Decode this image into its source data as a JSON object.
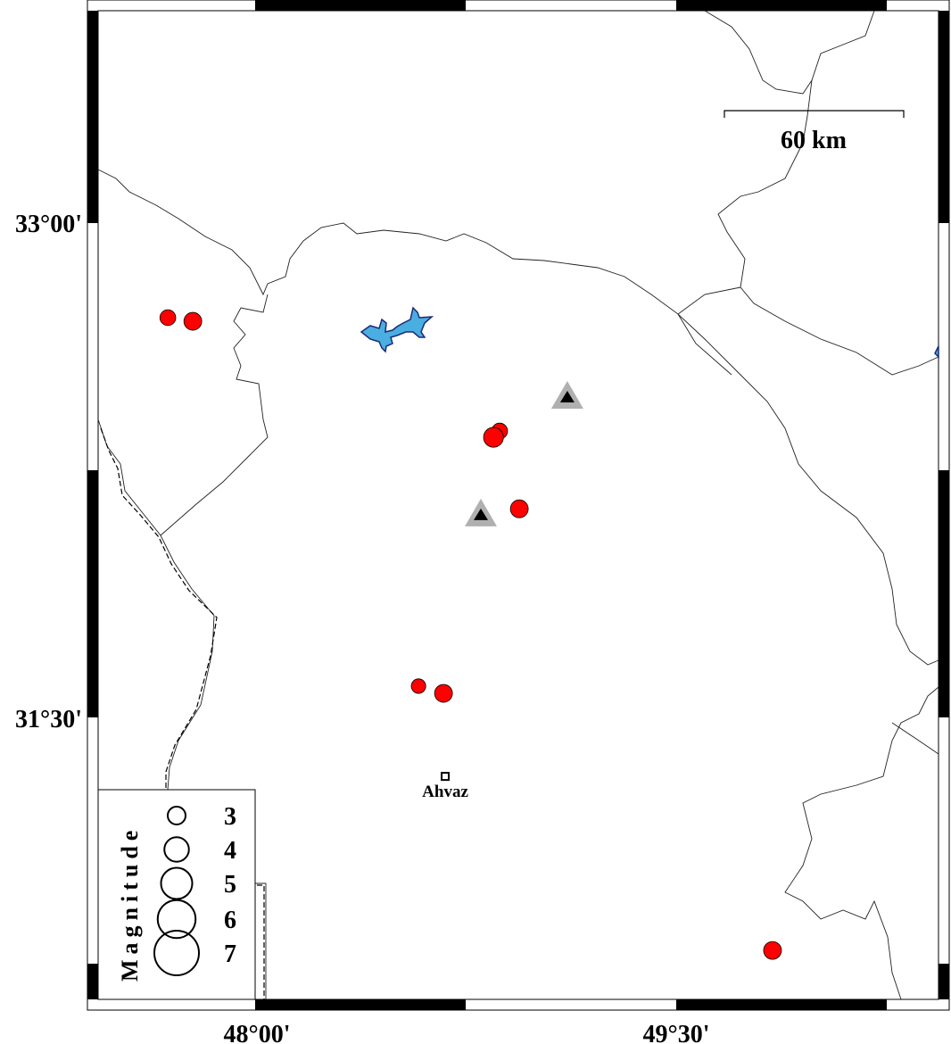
{
  "map": {
    "axes": {
      "lon_ticks": [
        "48°00'",
        "49°30'"
      ],
      "lat_ticks": [
        "33°00'",
        "31°30'"
      ],
      "lon_range": [
        47.6,
        50.6
      ],
      "lat_range": [
        30.7,
        33.8
      ]
    },
    "scale_bar": {
      "label": "60 km"
    },
    "city": {
      "name": "Ahvaz",
      "lon": 48.677,
      "lat": 31.321
    },
    "colors": {
      "earthquake": "#ff0000",
      "lake": "#4aaee0",
      "station_outer": "#b0b0b0",
      "station_inner": "#000000"
    },
    "earthquakes": [
      {
        "lon": 47.689,
        "lat": 32.713,
        "mag": 2.7
      },
      {
        "lon": 47.778,
        "lat": 32.702,
        "mag": 3.0
      },
      {
        "lon": 48.871,
        "lat": 32.369,
        "mag": 2.7
      },
      {
        "lon": 48.849,
        "lat": 32.35,
        "mag": 3.3
      },
      {
        "lon": 48.941,
        "lat": 32.133,
        "mag": 3.0
      },
      {
        "lon": 48.582,
        "lat": 31.595,
        "mag": 2.5
      },
      {
        "lon": 48.671,
        "lat": 31.573,
        "mag": 3.0
      },
      {
        "lon": 49.843,
        "lat": 30.793,
        "mag": 3.0
      }
    ],
    "stations": [
      {
        "lon": 49.112,
        "lat": 32.472
      },
      {
        "lon": 48.804,
        "lat": 32.115
      }
    ],
    "legend": {
      "title": "Magnitude",
      "items": [
        {
          "label": "3",
          "mag": 3
        },
        {
          "label": "4",
          "mag": 4
        },
        {
          "label": "5",
          "mag": 5
        },
        {
          "label": "6",
          "mag": 6
        },
        {
          "label": "7",
          "mag": 7
        }
      ]
    }
  }
}
